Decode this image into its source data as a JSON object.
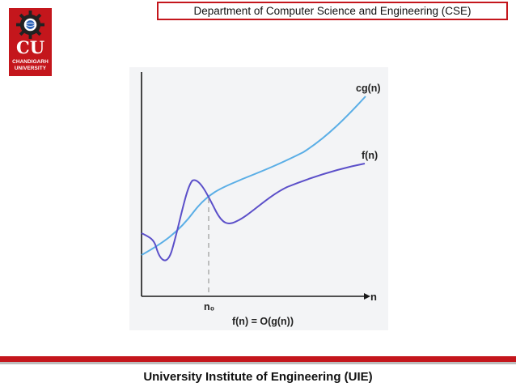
{
  "header": {
    "department": "Department of Computer Science and Engineering (CSE)"
  },
  "logo": {
    "initials": "CU",
    "name_line1": "CHANDIGARH",
    "name_line2": "UNIVERSITY"
  },
  "figure": {
    "curve_upper_label": "cg(n)",
    "curve_lower_label": "f(n)",
    "x_axis_label": "n",
    "threshold_label": "n₀",
    "caption": "f(n) = O(g(n))"
  },
  "colors": {
    "brand_red": "#c4161c",
    "cg_curve": "#5aaee6",
    "f_curve": "#5b4fc9"
  },
  "footer": {
    "institute": "University Institute of Engineering (UIE)"
  }
}
